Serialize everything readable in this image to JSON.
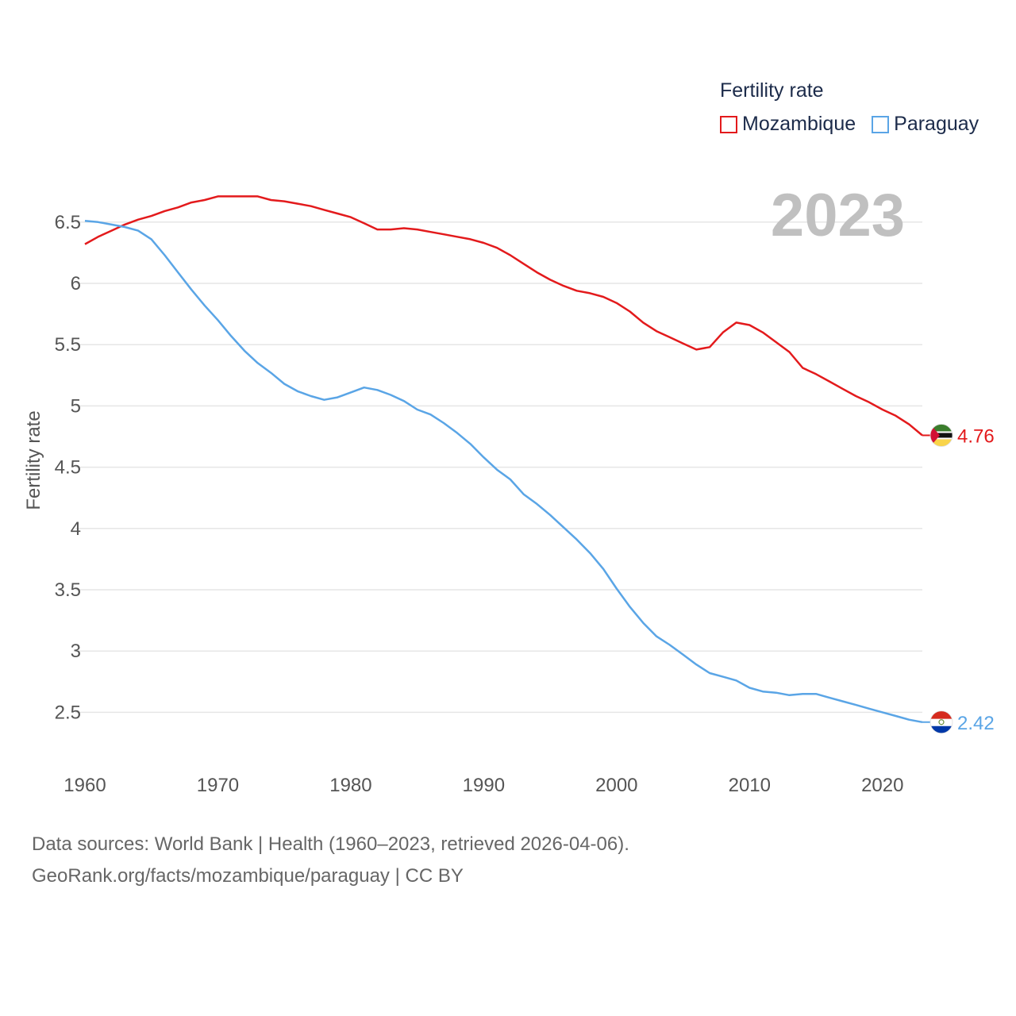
{
  "legend": {
    "title": "Fertility rate",
    "entries": [
      {
        "name": "Mozambique",
        "color": "#e31a1c"
      },
      {
        "name": "Paraguay",
        "color": "#5aa5e6"
      }
    ]
  },
  "year_label": "2023",
  "footer": {
    "line1": "Data sources: World Bank | Health (1960–2023, retrieved 2026-04-06).",
    "line2": "GeoRank.org/facts/mozambique/paraguay | CC BY"
  },
  "chart_data": {
    "type": "line",
    "title": "",
    "xlabel": "",
    "ylabel": "Fertility rate",
    "xlim": [
      1960,
      2023
    ],
    "ylim": [
      2.2,
      6.7
    ],
    "xticks": [
      1960,
      1970,
      1980,
      1990,
      2000,
      2010,
      2020
    ],
    "yticks": [
      2.5,
      3,
      3.5,
      4,
      4.5,
      5,
      5.5,
      6,
      6.5
    ],
    "ytick_labels": [
      "2.5",
      "3",
      "3.5",
      "4",
      "4.5",
      "5",
      "5.5",
      "6",
      "6.5"
    ],
    "x": [
      1960,
      1961,
      1962,
      1963,
      1964,
      1965,
      1966,
      1967,
      1968,
      1969,
      1970,
      1971,
      1972,
      1973,
      1974,
      1975,
      1976,
      1977,
      1978,
      1979,
      1980,
      1981,
      1982,
      1983,
      1984,
      1985,
      1986,
      1987,
      1988,
      1989,
      1990,
      1991,
      1992,
      1993,
      1994,
      1995,
      1996,
      1997,
      1998,
      1999,
      2000,
      2001,
      2002,
      2003,
      2004,
      2005,
      2006,
      2007,
      2008,
      2009,
      2010,
      2011,
      2012,
      2013,
      2014,
      2015,
      2016,
      2017,
      2018,
      2019,
      2020,
      2021,
      2022,
      2023
    ],
    "series": [
      {
        "name": "Mozambique",
        "color": "#e31a1c",
        "end_label": "4.76",
        "values": [
          6.32,
          6.38,
          6.43,
          6.48,
          6.52,
          6.55,
          6.59,
          6.62,
          6.66,
          6.68,
          6.71,
          6.71,
          6.71,
          6.71,
          6.68,
          6.67,
          6.65,
          6.63,
          6.6,
          6.57,
          6.54,
          6.49,
          6.44,
          6.44,
          6.45,
          6.44,
          6.42,
          6.4,
          6.38,
          6.36,
          6.33,
          6.29,
          6.23,
          6.16,
          6.09,
          6.03,
          5.98,
          5.94,
          5.92,
          5.89,
          5.84,
          5.77,
          5.68,
          5.61,
          5.56,
          5.51,
          5.46,
          5.48,
          5.6,
          5.68,
          5.66,
          5.6,
          5.52,
          5.44,
          5.31,
          5.26,
          5.2,
          5.14,
          5.08,
          5.03,
          4.97,
          4.92,
          4.85,
          4.76
        ]
      },
      {
        "name": "Paraguay",
        "color": "#5aa5e6",
        "end_label": "2.42",
        "values": [
          6.51,
          6.5,
          6.48,
          6.46,
          6.43,
          6.36,
          6.23,
          6.09,
          5.95,
          5.82,
          5.7,
          5.57,
          5.45,
          5.35,
          5.27,
          5.18,
          5.12,
          5.08,
          5.05,
          5.07,
          5.11,
          5.15,
          5.13,
          5.09,
          5.04,
          4.97,
          4.93,
          4.86,
          4.78,
          4.69,
          4.58,
          4.48,
          4.4,
          4.28,
          4.2,
          4.11,
          4.01,
          3.91,
          3.8,
          3.67,
          3.51,
          3.36,
          3.23,
          3.12,
          3.05,
          2.97,
          2.89,
          2.82,
          2.79,
          2.76,
          2.7,
          2.67,
          2.66,
          2.64,
          2.65,
          2.65,
          2.62,
          2.59,
          2.56,
          2.53,
          2.5,
          2.47,
          2.44,
          2.42
        ]
      }
    ]
  }
}
